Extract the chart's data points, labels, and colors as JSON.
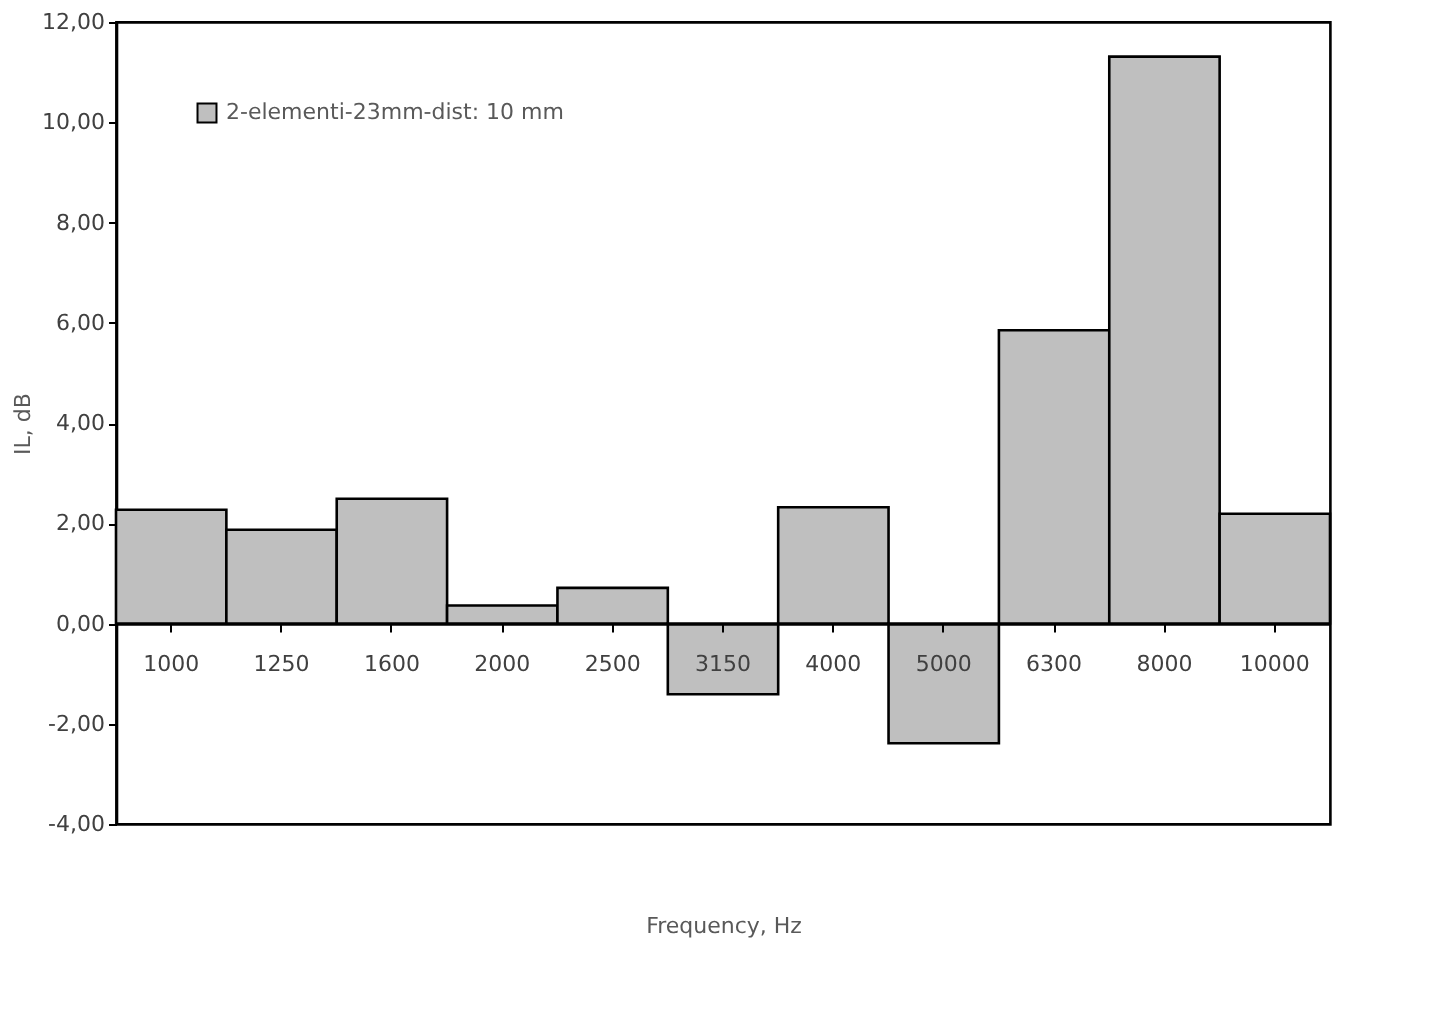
{
  "chart_data": {
    "type": "bar",
    "xlabel": "Frequency, Hz",
    "ylabel": "IL, dB",
    "categories": [
      "1000",
      "1250",
      "1600",
      "2000",
      "2500",
      "3150",
      "4000",
      "5000",
      "6300",
      "8000",
      "10000"
    ],
    "series": [
      {
        "name": "2-elementi-23mm-dist: 10 mm",
        "color": "#bfbfbf",
        "values": [
          2.27,
          1.87,
          2.49,
          0.36,
          0.71,
          -1.41,
          2.32,
          -2.39,
          5.85,
          11.31,
          2.19
        ]
      }
    ],
    "ylim": [
      -4,
      12
    ],
    "yticks": [
      {
        "value": -4,
        "label": "-4,00"
      },
      {
        "value": -2,
        "label": "-2,00"
      },
      {
        "value": 0,
        "label": "0,00"
      },
      {
        "value": 2,
        "label": "2,00"
      },
      {
        "value": 4,
        "label": "4,00"
      },
      {
        "value": 6,
        "label": "6,00"
      },
      {
        "value": 8,
        "label": "8,00"
      },
      {
        "value": 10,
        "label": "10,00"
      },
      {
        "value": 12,
        "label": "12,00"
      }
    ],
    "grid": false,
    "legend": "top left"
  }
}
